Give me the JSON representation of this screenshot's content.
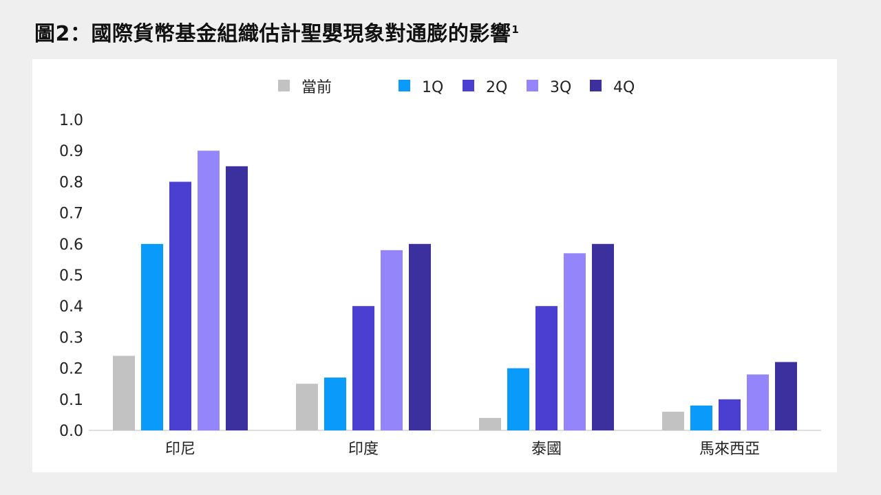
{
  "title": "圖2：國際貨幣基金組織估計聖嬰現象對通膨的影響",
  "title_footnote": "1",
  "chart_data": {
    "type": "bar",
    "title": "圖2：國際貨幣基金組織估計聖嬰現象對通膨的影響",
    "xlabel": "",
    "ylabel": "",
    "ylim": [
      0,
      1.0
    ],
    "yticks": [
      "0.0",
      "0.1",
      "0.2",
      "0.3",
      "0.4",
      "0.5",
      "0.6",
      "0.7",
      "0.8",
      "0.9",
      "1.0"
    ],
    "grid": false,
    "legend_position": "top-center",
    "categories": [
      "印尼",
      "印度",
      "泰國",
      "馬來西亞"
    ],
    "series": [
      {
        "name": "當前",
        "color": "#c2c2c2",
        "values": [
          0.24,
          0.15,
          0.04,
          0.06
        ]
      },
      {
        "name": "1Q",
        "color": "#0a9bfa",
        "values": [
          0.6,
          0.17,
          0.2,
          0.08
        ]
      },
      {
        "name": "2Q",
        "color": "#4a3fd0",
        "values": [
          0.8,
          0.4,
          0.4,
          0.1
        ]
      },
      {
        "name": "3Q",
        "color": "#9486fa",
        "values": [
          0.9,
          0.58,
          0.57,
          0.18
        ]
      },
      {
        "name": "4Q",
        "color": "#3b309e",
        "values": [
          0.85,
          0.6,
          0.6,
          0.22
        ]
      }
    ]
  }
}
